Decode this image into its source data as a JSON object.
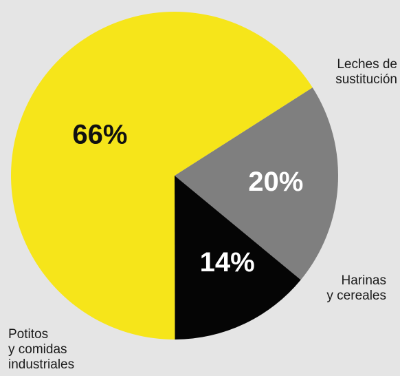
{
  "chart_data": {
    "type": "pie",
    "slices": [
      {
        "key": "leches",
        "label_lines": [
          "Leches de",
          "sustitución"
        ],
        "value": 20,
        "display": "20%",
        "color": "#7f7f7f",
        "text_color": "#ffffff"
      },
      {
        "key": "harinas",
        "label_lines": [
          "Harinas",
          "y cereales"
        ],
        "value": 14,
        "display": "14%",
        "color": "#050505",
        "text_color": "#ffffff"
      },
      {
        "key": "potitos",
        "label_lines": [
          "Potitos",
          "y comidas",
          "industriales"
        ],
        "value": 66,
        "display": "66%",
        "color": "#f6e51a",
        "text_color": "#111111"
      }
    ],
    "title": "",
    "legend": "none",
    "background": "#e5e5e5"
  }
}
